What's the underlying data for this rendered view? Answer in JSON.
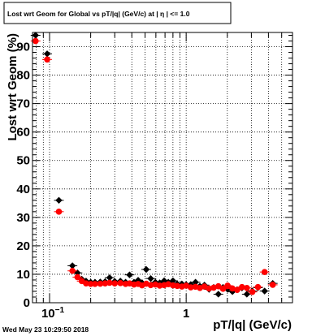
{
  "title": "Lost wrt Geom for Global vs pT/|q| (GeV/c) at | η | <= 1.0",
  "timestamp": "Wed May 23 10:29:50 2018",
  "colors": {
    "series_black": "#000000",
    "series_red": "#ff0000",
    "frame": "#000000",
    "background": "#ffffff"
  },
  "chart_data": {
    "type": "scatter",
    "title": "Lost wrt Geom for Global vs pT/|q| (GeV/c) at | η | <= 1.0",
    "xlabel": "pT/|q| (GeV/c)",
    "ylabel": "Lost wrt Geom (%)",
    "xscale": "log",
    "xlim": [
      0.075,
      6.0
    ],
    "ylim": [
      0,
      95
    ],
    "grid": true,
    "legend": "none",
    "x_tick_labels": [
      {
        "value": 0.1,
        "base": "10",
        "exp": "−1"
      },
      {
        "value": 1,
        "base": "1",
        "exp": ""
      }
    ],
    "y_ticks": [
      0,
      10,
      20,
      30,
      40,
      50,
      60,
      70,
      80,
      90
    ],
    "series": [
      {
        "color": "#000000",
        "marker": "diamond",
        "points": [
          {
            "x": 0.079,
            "y": 94.0
          },
          {
            "x": 0.096,
            "y": 87.5
          },
          {
            "x": 0.117,
            "y": 36.0
          },
          {
            "x": 0.147,
            "y": 13.0
          },
          {
            "x": 0.16,
            "y": 10.5
          },
          {
            "x": 0.172,
            "y": 8.3
          },
          {
            "x": 0.185,
            "y": 7.6
          },
          {
            "x": 0.2,
            "y": 7.2
          },
          {
            "x": 0.215,
            "y": 7.2
          },
          {
            "x": 0.235,
            "y": 7.3
          },
          {
            "x": 0.255,
            "y": 7.4
          },
          {
            "x": 0.275,
            "y": 8.8
          },
          {
            "x": 0.3,
            "y": 7.5
          },
          {
            "x": 0.33,
            "y": 7.6
          },
          {
            "x": 0.36,
            "y": 7.2
          },
          {
            "x": 0.385,
            "y": 9.8
          },
          {
            "x": 0.415,
            "y": 7.2
          },
          {
            "x": 0.445,
            "y": 7.9
          },
          {
            "x": 0.475,
            "y": 7.0
          },
          {
            "x": 0.51,
            "y": 11.7
          },
          {
            "x": 0.55,
            "y": 8.5
          },
          {
            "x": 0.595,
            "y": 7.2
          },
          {
            "x": 0.64,
            "y": 7.0
          },
          {
            "x": 0.69,
            "y": 7.7
          },
          {
            "x": 0.74,
            "y": 7.2
          },
          {
            "x": 0.8,
            "y": 7.7
          },
          {
            "x": 0.86,
            "y": 6.6
          },
          {
            "x": 0.93,
            "y": 6.6
          },
          {
            "x": 1.0,
            "y": 6.4
          },
          {
            "x": 1.08,
            "y": 6.4
          },
          {
            "x": 1.17,
            "y": 7.2
          },
          {
            "x": 1.26,
            "y": 5.8
          },
          {
            "x": 1.36,
            "y": 6.2
          },
          {
            "x": 1.47,
            "y": 4.7
          },
          {
            "x": 1.59,
            "y": 5.4
          },
          {
            "x": 1.72,
            "y": 3.0
          },
          {
            "x": 1.86,
            "y": 5.4
          },
          {
            "x": 2.01,
            "y": 4.7
          },
          {
            "x": 2.18,
            "y": 3.9
          },
          {
            "x": 2.36,
            "y": 4.6
          },
          {
            "x": 2.56,
            "y": 5.2
          },
          {
            "x": 2.78,
            "y": 3.0
          },
          {
            "x": 3.05,
            "y": 4.1
          },
          {
            "x": 3.35,
            "y": 5.3
          },
          {
            "x": 3.75,
            "y": 4.1
          },
          {
            "x": 4.3,
            "y": 6.8
          }
        ]
      },
      {
        "color": "#ff0000",
        "marker": "circle",
        "points": [
          {
            "x": 0.079,
            "y": 92.0
          },
          {
            "x": 0.096,
            "y": 85.5
          },
          {
            "x": 0.117,
            "y": 32.0
          },
          {
            "x": 0.147,
            "y": 11.2
          },
          {
            "x": 0.16,
            "y": 9.0
          },
          {
            "x": 0.172,
            "y": 7.6
          },
          {
            "x": 0.185,
            "y": 6.8
          },
          {
            "x": 0.2,
            "y": 6.6
          },
          {
            "x": 0.215,
            "y": 6.6
          },
          {
            "x": 0.235,
            "y": 6.7
          },
          {
            "x": 0.255,
            "y": 6.8
          },
          {
            "x": 0.275,
            "y": 7.0
          },
          {
            "x": 0.3,
            "y": 6.8
          },
          {
            "x": 0.33,
            "y": 6.9
          },
          {
            "x": 0.36,
            "y": 6.6
          },
          {
            "x": 0.385,
            "y": 6.8
          },
          {
            "x": 0.415,
            "y": 6.4
          },
          {
            "x": 0.445,
            "y": 6.6
          },
          {
            "x": 0.475,
            "y": 6.1
          },
          {
            "x": 0.51,
            "y": 6.7
          },
          {
            "x": 0.55,
            "y": 6.2
          },
          {
            "x": 0.595,
            "y": 6.4
          },
          {
            "x": 0.64,
            "y": 6.0
          },
          {
            "x": 0.69,
            "y": 6.2
          },
          {
            "x": 0.74,
            "y": 6.5
          },
          {
            "x": 0.8,
            "y": 6.1
          },
          {
            "x": 0.86,
            "y": 5.9
          },
          {
            "x": 0.93,
            "y": 5.7
          },
          {
            "x": 1.0,
            "y": 6.0
          },
          {
            "x": 1.08,
            "y": 5.4
          },
          {
            "x": 1.17,
            "y": 5.6
          },
          {
            "x": 1.26,
            "y": 5.2
          },
          {
            "x": 1.36,
            "y": 5.7
          },
          {
            "x": 1.47,
            "y": 5.0
          },
          {
            "x": 1.59,
            "y": 5.3
          },
          {
            "x": 1.72,
            "y": 5.8
          },
          {
            "x": 1.86,
            "y": 4.9
          },
          {
            "x": 2.01,
            "y": 6.0
          },
          {
            "x": 2.18,
            "y": 5.0
          },
          {
            "x": 2.36,
            "y": 4.5
          },
          {
            "x": 2.56,
            "y": 5.5
          },
          {
            "x": 2.78,
            "y": 5.2
          },
          {
            "x": 3.05,
            "y": 3.8
          },
          {
            "x": 3.35,
            "y": 5.5
          },
          {
            "x": 3.75,
            "y": 10.8
          },
          {
            "x": 4.3,
            "y": 6.3
          }
        ]
      }
    ]
  }
}
